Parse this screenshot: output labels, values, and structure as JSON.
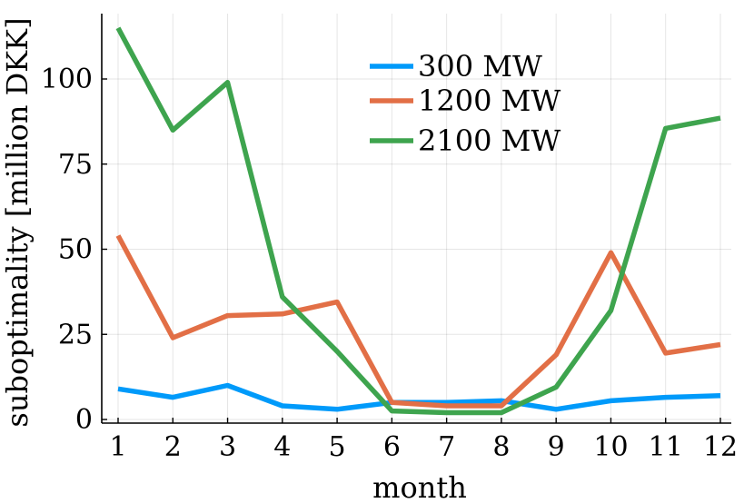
{
  "chart_data": {
    "type": "line",
    "title": "",
    "xlabel": "month",
    "ylabel": "suboptimality [million DKK]",
    "x": [
      1,
      2,
      3,
      4,
      5,
      6,
      7,
      8,
      9,
      10,
      11,
      12
    ],
    "xticks": [
      "1",
      "2",
      "3",
      "4",
      "5",
      "6",
      "7",
      "8",
      "9",
      "10",
      "11",
      "12"
    ],
    "yticks": [
      "0",
      "25",
      "50",
      "75",
      "100"
    ],
    "ytick_values": [
      0,
      25,
      50,
      75,
      100
    ],
    "xlim": [
      0.7,
      12.0
    ],
    "ylim": [
      -1,
      118
    ],
    "grid": true,
    "legend_position": "top-right",
    "series": [
      {
        "name": "300 MW",
        "color": "#009AFA",
        "values": [
          9,
          6.5,
          10,
          4,
          3,
          5,
          5,
          5.5,
          3,
          5.5,
          6.5,
          7
        ]
      },
      {
        "name": "1200 MW",
        "color": "#E26F46",
        "values": [
          54,
          24,
          30.5,
          31,
          34.5,
          5,
          4,
          4,
          19,
          49,
          19.5,
          22
        ]
      },
      {
        "name": "2100 MW",
        "color": "#3EA44E",
        "values": [
          115,
          85,
          99,
          36,
          20,
          2.5,
          2,
          2,
          9.5,
          32,
          85.5,
          88.5
        ]
      }
    ]
  }
}
